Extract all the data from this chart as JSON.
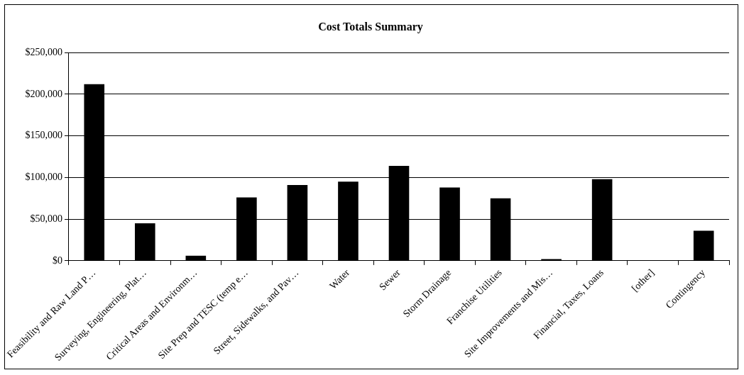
{
  "chart_data": {
    "type": "bar",
    "title": "Cost Totals Summary",
    "categories": [
      "Feasibility and Raw Land P…",
      "Surveying, Engineering, Plat…",
      "Critical Areas and Environm…",
      "Site Prep and TESC (temp e…",
      "Street, Sidewalks, and Pav…",
      "Water",
      "Sewer",
      "Storm Drainage",
      "Franchise Utilities",
      "Site Improvements and Mis…",
      "Financial, Taxes, Loans",
      "[other]",
      "Contingency"
    ],
    "values": [
      212000,
      45000,
      6000,
      76000,
      91000,
      95000,
      114000,
      88000,
      75000,
      2000,
      98000,
      0,
      36000
    ],
    "color": "#000000",
    "ylim": [
      0,
      250000
    ],
    "yticks": [
      {
        "value": 0,
        "label": "$0"
      },
      {
        "value": 50000,
        "label": "$50,000"
      },
      {
        "value": 100000,
        "label": "$100,000"
      },
      {
        "value": 150000,
        "label": "$150,000"
      },
      {
        "value": 200000,
        "label": "$200,000"
      },
      {
        "value": 250000,
        "label": "$250,000"
      }
    ],
    "grid": "y",
    "legend": false
  }
}
